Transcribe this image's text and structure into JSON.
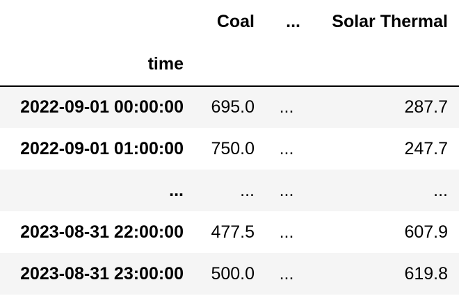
{
  "table": {
    "columns": [
      "Coal",
      "...",
      "Solar Thermal"
    ],
    "index_name": "time",
    "rows": [
      {
        "index": "2022-09-01 00:00:00",
        "coal": "695.0",
        "mid": "...",
        "solar": "287.7"
      },
      {
        "index": "2022-09-01 01:00:00",
        "coal": "750.0",
        "mid": "...",
        "solar": "247.7"
      },
      {
        "index": "...",
        "coal": "...",
        "mid": "...",
        "solar": "..."
      },
      {
        "index": "2023-08-31 22:00:00",
        "coal": "477.5",
        "mid": "...",
        "solar": "607.9"
      },
      {
        "index": "2023-08-31 23:00:00",
        "coal": "500.0",
        "mid": "...",
        "solar": "619.8"
      }
    ]
  },
  "colors": {
    "stripe": "#f5f5f5",
    "background": "#ffffff",
    "text": "#000000"
  }
}
